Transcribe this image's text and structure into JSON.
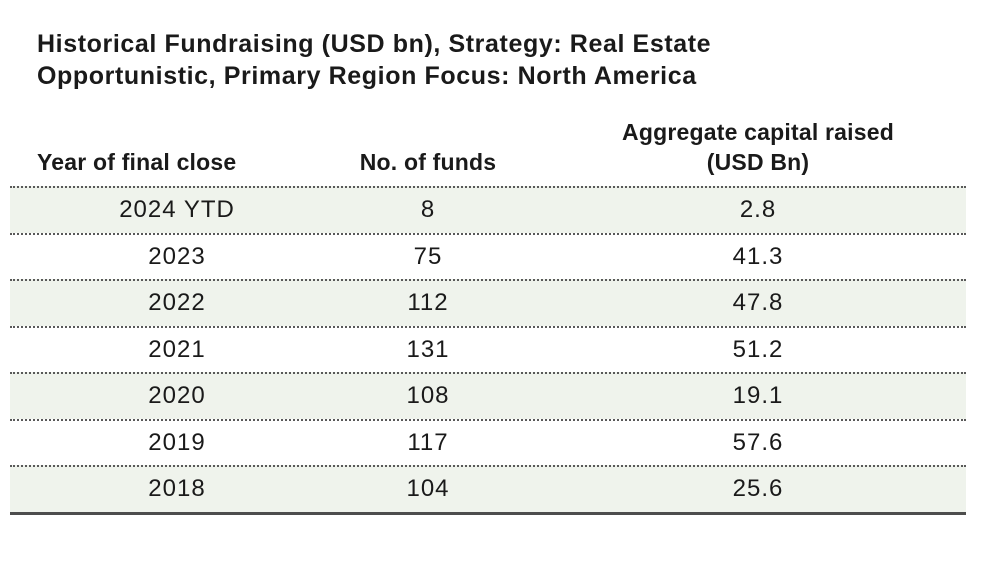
{
  "title": {
    "lines": [
      "Historical Fundraising (USD bn), Strategy: Real Estate",
      "Opportunistic, Primary Region Focus: North America"
    ]
  },
  "table": {
    "headers": {
      "year": "Year of final close",
      "funds": "No. of funds",
      "capital": "Aggregate capital raised (USD Bn)"
    },
    "rows": [
      {
        "year": "2024 YTD",
        "funds": "8",
        "capital": "2.8"
      },
      {
        "year": "2023",
        "funds": "75",
        "capital": "41.3"
      },
      {
        "year": "2022",
        "funds": "112",
        "capital": "47.8"
      },
      {
        "year": "2021",
        "funds": "131",
        "capital": "51.2"
      },
      {
        "year": "2020",
        "funds": "108",
        "capital": "19.1"
      },
      {
        "year": "2019",
        "funds": "117",
        "capital": "57.6"
      },
      {
        "year": "2018",
        "funds": "104",
        "capital": "25.6"
      }
    ],
    "style": {
      "row_shade": "#eff3ec",
      "separator_color": "#595959",
      "bottom_border_color": "#4d4d4d",
      "text_color": "#1a1a1a"
    }
  },
  "chart_data": {
    "type": "table",
    "title": "Historical Fundraising (USD bn), Strategy: Real Estate Opportunistic, Primary Region Focus: North America",
    "columns": [
      "Year of final close",
      "No. of funds",
      "Aggregate capital raised (USD Bn)"
    ],
    "rows": [
      [
        "2024 YTD",
        8,
        2.8
      ],
      [
        "2023",
        75,
        41.3
      ],
      [
        "2022",
        112,
        47.8
      ],
      [
        "2021",
        131,
        51.2
      ],
      [
        "2020",
        108,
        19.1
      ],
      [
        "2019",
        117,
        57.6
      ],
      [
        "2018",
        104,
        25.6
      ]
    ],
    "series": [
      {
        "name": "No. of funds",
        "values": [
          8,
          75,
          112,
          131,
          108,
          117,
          104
        ]
      },
      {
        "name": "Aggregate capital raised (USD Bn)",
        "values": [
          2.8,
          41.3,
          47.8,
          51.2,
          19.1,
          57.6,
          25.6
        ]
      }
    ],
    "categories": [
      "2024 YTD",
      "2023",
      "2022",
      "2021",
      "2020",
      "2019",
      "2018"
    ],
    "layout": {
      "row_shading": "alternating starting with first data row",
      "separators": "dotted",
      "bottom_rule": "solid"
    }
  }
}
